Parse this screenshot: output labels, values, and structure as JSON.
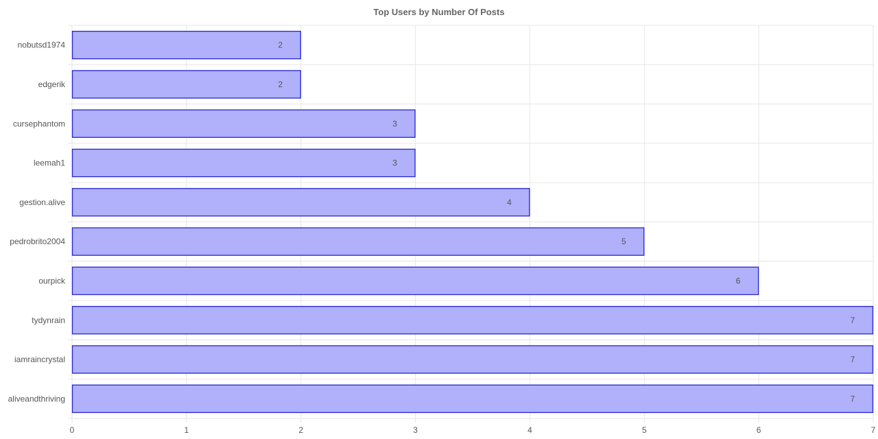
{
  "chart_data": {
    "type": "bar",
    "orientation": "horizontal",
    "title": "Top Users by Number Of Posts",
    "xlabel": "",
    "ylabel": "",
    "categories": [
      "nobutsd1974",
      "edgerik",
      "cursephantom",
      "leemah1",
      "gestion.alive",
      "pedrobrito2004",
      "ourpick",
      "tydynrain",
      "iamraincrystal",
      "aliveandthriving"
    ],
    "values": [
      2,
      2,
      3,
      3,
      4,
      5,
      6,
      7,
      7,
      7
    ],
    "xlim": [
      0,
      7
    ],
    "x_ticks": [
      0,
      1,
      2,
      3,
      4,
      5,
      6,
      7
    ],
    "grid": true,
    "legend": "none",
    "colors": {
      "bar_fill": "#b0b0fb",
      "bar_stroke": "#2424d6",
      "grid": "#e6e6e6",
      "text": "#555555"
    }
  }
}
